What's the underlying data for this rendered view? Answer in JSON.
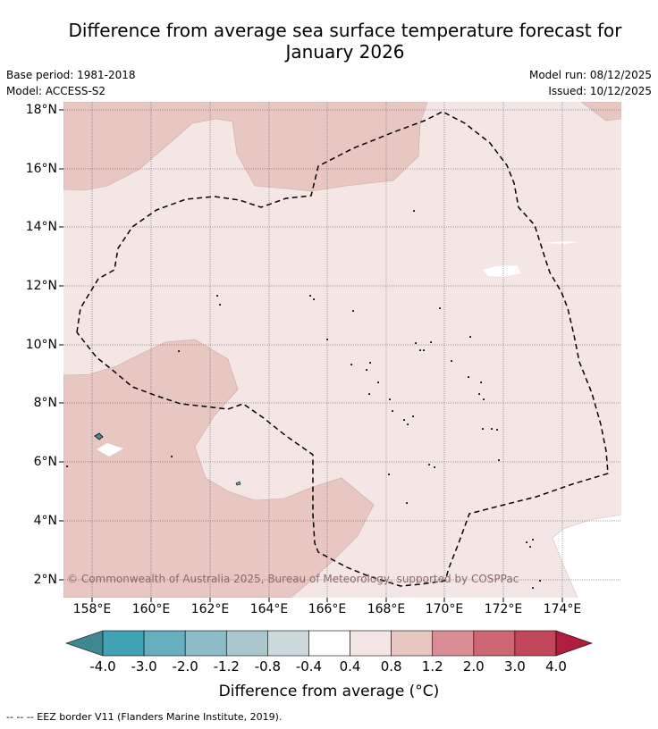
{
  "title": {
    "line1": "Difference from average sea surface temperature forecast for",
    "line2": "January 2026"
  },
  "meta": {
    "base_period": "Base period: 1981-2018",
    "model": "Model: ACCESS-S2",
    "model_run": "Model run: 08/12/2025",
    "issued": "Issued: 10/12/2025"
  },
  "axes": {
    "latitudes": [
      "18°N",
      "16°N",
      "14°N",
      "12°N",
      "10°N",
      "8°N",
      "6°N",
      "4°N",
      "2°N"
    ],
    "longitudes": [
      "158°E",
      "160°E",
      "162°E",
      "164°E",
      "166°E",
      "168°E",
      "170°E",
      "172°E",
      "174°E"
    ]
  },
  "copyright": "© Commonwealth of Australia 2025, Bureau of Meteorology, supported by COSPPac",
  "colorbar": {
    "labels": [
      "-4.0",
      "-3.0",
      "-2.0",
      "-1.2",
      "-0.8",
      "-0.4",
      "0.4",
      "0.8",
      "1.2",
      "2.0",
      "3.0",
      "4.0"
    ],
    "colors": [
      "#41a2b6",
      "#67aebf",
      "#8dbbc7",
      "#a9c7cc",
      "#ccd8da",
      "#ffffff",
      "#f4e6e5",
      "#e8c6c2",
      "#d98e96",
      "#cd6773",
      "#c0485a"
    ],
    "under_color": "#3f8892",
    "over_color": "#b01d3d",
    "title": "Difference from average (°C)"
  },
  "legend_colors": {
    "low_anomaly": "#f4e6e5",
    "mid_anomaly": "#e8c6c2",
    "land": "#ffffff"
  },
  "footnote": "--  --  -- EEZ border V11 (Flanders Marine Institute, 2019)."
}
